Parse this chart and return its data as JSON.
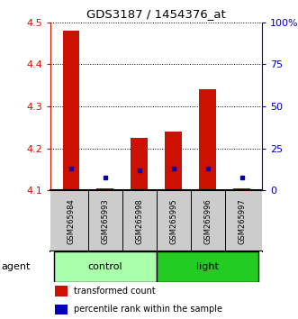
{
  "title": "GDS3187 / 1454376_at",
  "samples": [
    "GSM265984",
    "GSM265993",
    "GSM265998",
    "GSM265995",
    "GSM265996",
    "GSM265997"
  ],
  "red_values": [
    4.48,
    4.105,
    4.225,
    4.24,
    4.34,
    4.105
  ],
  "blue_values": [
    13,
    8,
    12,
    13,
    13,
    8
  ],
  "ymin": 4.1,
  "ymax": 4.5,
  "y_ticks": [
    4.1,
    4.2,
    4.3,
    4.4,
    4.5
  ],
  "y2min": 0,
  "y2max": 100,
  "y2_ticks": [
    0,
    25,
    50,
    75,
    100
  ],
  "y2_labels": [
    "0",
    "25",
    "50",
    "75",
    "100%"
  ],
  "groups": [
    {
      "label": "control",
      "indices": [
        0,
        1,
        2
      ],
      "color": "#aaffaa"
    },
    {
      "label": "light",
      "indices": [
        3,
        4,
        5
      ],
      "color": "#22cc22"
    }
  ],
  "agent_label": "agent",
  "bar_color": "#cc1100",
  "marker_color": "#0000bb",
  "grid_color": "black",
  "axis_color_left": "#cc1100",
  "axis_color_right": "#0000bb",
  "bg_color": "#ffffff",
  "sample_bg": "#cccccc",
  "bar_width": 0.5,
  "legend": [
    {
      "label": "transformed count",
      "color": "#cc1100"
    },
    {
      "label": "percentile rank within the sample",
      "color": "#0000bb"
    }
  ]
}
